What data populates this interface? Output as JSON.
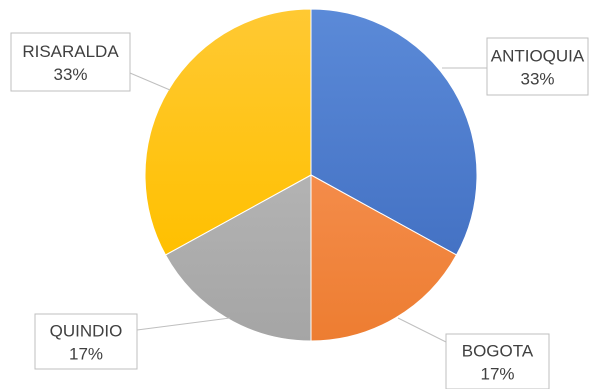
{
  "chart_data": {
    "type": "pie",
    "title": "",
    "start_angle_deg": 0,
    "direction": "clockwise",
    "slices": [
      {
        "name": "ANTIOQUIA",
        "value": 33,
        "label": "33%",
        "color": "#4472C4",
        "color_light": "#5b8ad8"
      },
      {
        "name": "BOGOTA",
        "value": 17,
        "label": "17%",
        "color": "#ED7D31",
        "color_light": "#f48c4a"
      },
      {
        "name": "QUINDIO",
        "value": 17,
        "label": "17%",
        "color": "#A5A5A5",
        "color_light": "#b3b3b3"
      },
      {
        "name": "RISARALDA",
        "value": 33,
        "label": "33%",
        "color": "#FFC000",
        "color_light": "#ffc933"
      }
    ]
  }
}
